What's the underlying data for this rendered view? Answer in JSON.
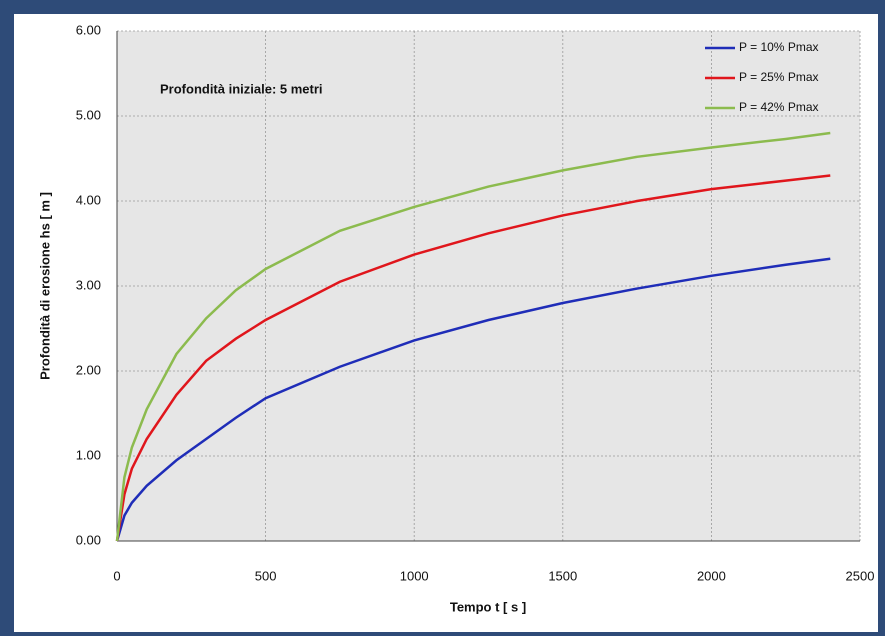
{
  "chart_data": {
    "type": "line",
    "annotation": "Profondità iniziale: 5 metri",
    "x_label": "Tempo t [ s ]",
    "y_label": "Profondità di erosione hs [ m ]",
    "x": [
      0,
      25,
      50,
      100,
      200,
      300,
      400,
      500,
      750,
      1000,
      1250,
      1500,
      1750,
      2000,
      2250,
      2400
    ],
    "series": [
      {
        "name": "P = 10% Pmax",
        "color": "#1f2db8",
        "values": [
          0,
          0.3,
          0.45,
          0.65,
          0.95,
          1.2,
          1.45,
          1.68,
          2.05,
          2.36,
          2.6,
          2.8,
          2.97,
          3.12,
          3.25,
          3.32
        ]
      },
      {
        "name": "P = 25% Pmax",
        "color": "#e0161c",
        "values": [
          0,
          0.55,
          0.85,
          1.2,
          1.72,
          2.12,
          2.38,
          2.6,
          3.05,
          3.37,
          3.62,
          3.83,
          4.0,
          4.14,
          4.24,
          4.3
        ]
      },
      {
        "name": "P = 42% Pmax",
        "color": "#8cbb4e",
        "values": [
          0,
          0.75,
          1.1,
          1.55,
          2.2,
          2.62,
          2.95,
          3.2,
          3.65,
          3.93,
          4.17,
          4.36,
          4.52,
          4.63,
          4.73,
          4.8
        ]
      }
    ],
    "xlim": [
      0,
      2500
    ],
    "xticks": [
      0,
      500,
      1000,
      1500,
      2000,
      2500
    ],
    "ylim": [
      0,
      6
    ],
    "yticks": [
      {
        "value": 0,
        "label": "0.00"
      },
      {
        "value": 1,
        "label": "1.00"
      },
      {
        "value": 2,
        "label": "2.00"
      },
      {
        "value": 3,
        "label": "3.00"
      },
      {
        "value": 4,
        "label": "4.00"
      },
      {
        "value": 5,
        "label": "5.00"
      },
      {
        "value": 6,
        "label": "6.00"
      }
    ],
    "grid": true,
    "legend": "top-right"
  }
}
